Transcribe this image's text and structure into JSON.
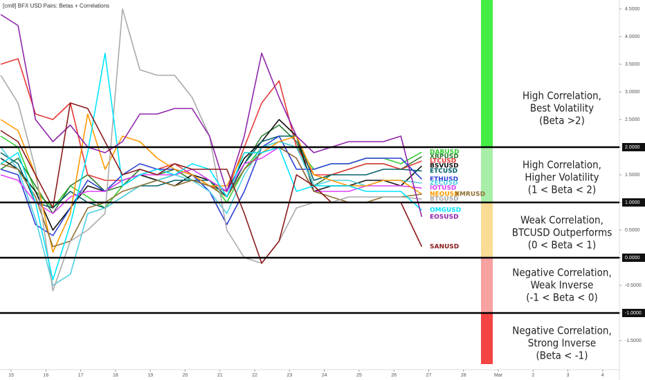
{
  "chart_data": {
    "type": "line",
    "title": "[cm8] BFX USD Pairs: Betas + Correlations",
    "x": [
      14.7,
      15.2,
      15.7,
      16.2,
      16.7,
      17.2,
      17.7,
      18.2,
      18.7,
      19.2,
      19.7,
      20.2,
      20.7,
      21.2,
      21.7,
      22.2,
      22.7,
      23.2,
      23.7,
      24.2,
      24.7,
      25.2,
      25.7,
      26.2,
      26.8
    ],
    "xlim": [
      14.68,
      32.48
    ],
    "xticks": [
      15,
      16,
      17,
      18,
      19,
      20,
      21,
      22,
      23,
      24,
      25,
      26,
      27,
      28,
      {
        "value": 29,
        "label": "Mar"
      },
      {
        "value": 30,
        "label": "2"
      },
      {
        "value": 31,
        "label": "3"
      },
      {
        "value": 32,
        "label": "4"
      }
    ],
    "ylim": [
      -2.025,
      4.6625
    ],
    "yticks": [
      {
        "value": 4.5,
        "label": "4.5000"
      },
      {
        "value": 4,
        "label": "4.0000"
      },
      {
        "value": 3.5,
        "label": "3.5000"
      },
      {
        "value": 3,
        "label": "3.0000"
      },
      {
        "value": 2.5,
        "label": "2.5000"
      },
      {
        "value": 2,
        "label": "2.0000"
      },
      {
        "value": 1.5,
        "label": "1.5000"
      },
      {
        "value": 1,
        "label": "1.0000"
      },
      {
        "value": 0.5,
        "label": "0.5000"
      },
      {
        "value": 0,
        "label": "0.0000"
      },
      {
        "value": -0.5,
        "label": "-0.5000"
      },
      {
        "value": -1,
        "label": "-1.0000"
      },
      {
        "value": -1.5,
        "label": "-1.5000"
      }
    ],
    "hlines": [
      2,
      1,
      0,
      -1
    ],
    "series": [
      {
        "name": "DABUSD",
        "color": "#33cc33",
        "values": [
          2.2,
          2.0,
          1.2,
          0.9,
          1.3,
          1.1,
          0.9,
          1.3,
          1.5,
          1.4,
          1.5,
          1.6,
          1.4,
          1.0,
          1.6,
          2.0,
          2.1,
          2.0,
          1.6,
          1.7,
          1.7,
          1.8,
          1.8,
          1.7,
          1.91
        ]
      },
      {
        "name": "XRPUSD",
        "color": "#2e7d32",
        "values": [
          1.6,
          1.8,
          1.3,
          0.8,
          1.3,
          1.5,
          1.2,
          1.3,
          1.6,
          1.5,
          1.6,
          1.4,
          1.3,
          1.1,
          1.7,
          2.2,
          2.4,
          2.1,
          1.3,
          1.5,
          1.6,
          1.7,
          1.7,
          1.6,
          1.83
        ]
      },
      {
        "name": "LTCUSD",
        "color": "#e53935",
        "values": [
          3.5,
          3.6,
          2.6,
          2.5,
          2.8,
          1.5,
          1.4,
          1.4,
          1.5,
          1.6,
          1.7,
          1.5,
          1.3,
          1.2,
          2.0,
          2.8,
          3.2,
          2.0,
          1.5,
          1.5,
          1.6,
          1.7,
          1.7,
          1.6,
          1.75
        ]
      },
      {
        "name": "BSVUSD",
        "color": "#111111",
        "values": [
          1.8,
          1.6,
          1.2,
          0.5,
          0.9,
          1.3,
          1.2,
          1.4,
          1.5,
          1.4,
          1.3,
          1.5,
          1.4,
          1.2,
          1.8,
          2.1,
          2.5,
          2.2,
          1.2,
          1.3,
          1.3,
          1.4,
          1.4,
          1.3,
          1.66
        ]
      },
      {
        "name": "ETCUSD",
        "color": "#00606a",
        "values": [
          1.9,
          1.7,
          1.0,
          0.9,
          1.2,
          1.0,
          0.9,
          1.1,
          1.3,
          1.3,
          1.4,
          1.4,
          1.4,
          1.1,
          1.7,
          2.1,
          2.2,
          2.2,
          1.4,
          1.5,
          1.5,
          1.5,
          1.6,
          1.6,
          1.57
        ]
      },
      {
        "name": "ETHUSD",
        "color": "#2a3fd6",
        "values": [
          1.6,
          1.5,
          0.6,
          0.4,
          0.9,
          1.4,
          1.2,
          1.5,
          1.7,
          1.6,
          1.6,
          1.5,
          1.2,
          0.6,
          1.2,
          2.0,
          2.2,
          1.6,
          1.6,
          1.7,
          1.7,
          1.8,
          1.8,
          1.8,
          1.42
        ]
      },
      {
        "name": "ZECUSD",
        "color": "#4dd0e1",
        "values": [
          2.0,
          1.6,
          0.7,
          -0.5,
          -0.3,
          0.8,
          0.9,
          1.1,
          1.3,
          1.4,
          1.5,
          1.4,
          1.2,
          0.8,
          1.5,
          2.0,
          2.1,
          2.0,
          1.3,
          1.4,
          1.4,
          1.3,
          1.4,
          1.4,
          1.35
        ]
      },
      {
        "name": "IOTUSD",
        "color": "#e040fb",
        "values": [
          1.5,
          1.4,
          1.0,
          0.8,
          1.1,
          1.2,
          1.2,
          1.4,
          1.5,
          1.5,
          1.5,
          1.6,
          1.4,
          1.2,
          1.7,
          1.8,
          2.0,
          1.8,
          1.2,
          1.2,
          1.2,
          1.3,
          1.3,
          1.3,
          1.26
        ]
      },
      {
        "name": "NEOUSD",
        "color": "#ff9800",
        "values": [
          2.5,
          2.3,
          1.5,
          0.1,
          0.8,
          2.6,
          1.6,
          2.2,
          2.1,
          1.8,
          1.6,
          1.5,
          1.3,
          1.3,
          1.9,
          1.9,
          2.1,
          2.2,
          1.5,
          1.4,
          1.3,
          1.3,
          1.4,
          1.4,
          1.15
        ]
      },
      {
        "name": "XMRUSD",
        "color": "#8d6e2f",
        "values": [
          1.7,
          1.6,
          1.1,
          0.2,
          0.3,
          0.9,
          1.0,
          1.2,
          1.3,
          1.4,
          1.3,
          1.4,
          1.3,
          1.1,
          1.6,
          1.9,
          2.0,
          1.8,
          1.2,
          1.1,
          1.0,
          1.0,
          1.1,
          1.1,
          1.15
        ]
      },
      {
        "name": "BTGUSD",
        "color": "#aaaaaa",
        "values": [
          3.3,
          2.8,
          1.6,
          -0.6,
          0.3,
          0.5,
          0.8,
          4.5,
          3.4,
          3.3,
          3.3,
          2.9,
          2.2,
          0.5,
          0.0,
          -0.1,
          0.3,
          0.9,
          1.0,
          1.0,
          1.1,
          1.1,
          1.1,
          1.1,
          1.06
        ]
      },
      {
        "name": "OMGUSD",
        "color": "#00e5ff",
        "values": [
          1.7,
          1.9,
          1.0,
          -0.4,
          0.6,
          1.9,
          3.7,
          1.3,
          1.5,
          1.6,
          1.5,
          1.7,
          1.6,
          1.1,
          1.9,
          1.9,
          2.0,
          1.2,
          1.3,
          1.3,
          1.3,
          1.2,
          1.2,
          1.2,
          0.86
        ]
      },
      {
        "name": "EOSUSD",
        "color": "#8e24aa",
        "values": [
          4.4,
          4.2,
          2.5,
          2.1,
          2.4,
          2.0,
          1.9,
          2.1,
          2.6,
          2.6,
          2.7,
          2.7,
          2.2,
          1.2,
          2.2,
          3.7,
          2.9,
          2.2,
          1.9,
          2.0,
          2.1,
          2.1,
          2.1,
          2.2,
          0.74
        ]
      },
      {
        "name": "SANUSD",
        "color": "#8b1a1a",
        "values": [
          2.3,
          2.1,
          1.5,
          0.9,
          2.8,
          2.7,
          2.1,
          1.5,
          1.6,
          1.5,
          1.7,
          1.6,
          1.6,
          1.6,
          0.8,
          -0.1,
          0.3,
          1.5,
          1.3,
          1.0,
          1.0,
          1.0,
          1.0,
          1.0,
          0.2
        ]
      }
    ],
    "zones": [
      {
        "from": 2,
        "to": 4.6625,
        "color": "#44ee44",
        "lines": [
          "High Correlation,",
          "Best Volatility",
          "(Beta >2)"
        ]
      },
      {
        "from": 1,
        "to": 2,
        "color": "#a8eea8",
        "lines": [
          "High Correlation,",
          "Higher Volatility",
          "(1 < Beta < 2)"
        ]
      },
      {
        "from": 0,
        "to": 1,
        "color": "#f9dd94",
        "lines": [
          "Weak Correlation,",
          "BTCUSD Outperforms",
          "(0 < Beta < 1)"
        ]
      },
      {
        "from": -1,
        "to": 0,
        "color": "#f7a1a1",
        "lines": [
          "Negative Correlation,",
          "Weak Inverse",
          "(-1 < Beta < 0)"
        ]
      },
      {
        "from": -1.925,
        "to": -1,
        "color": "#f44444",
        "lines": [
          "Negative Correlation,",
          "Strong Inverse",
          "(Beta < -1)"
        ]
      }
    ]
  }
}
